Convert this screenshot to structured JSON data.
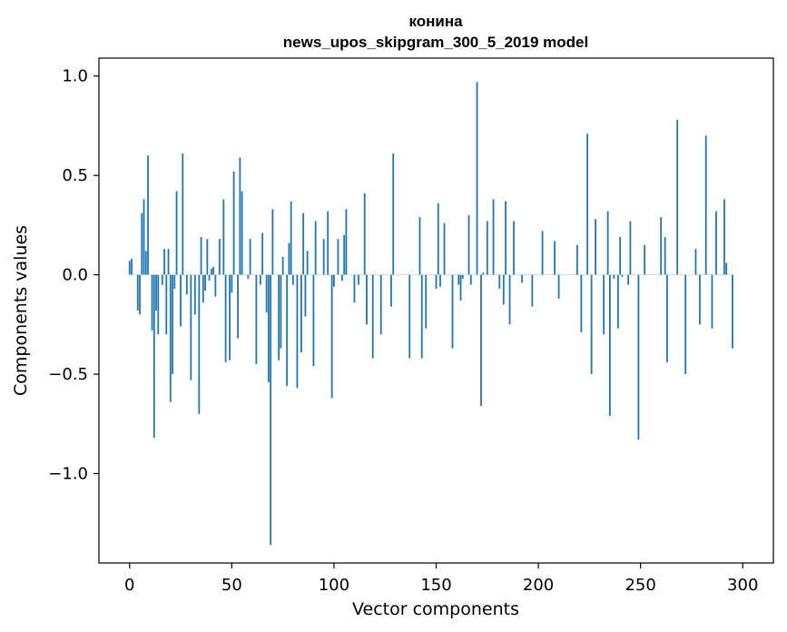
{
  "chart_data": {
    "type": "bar",
    "title": [
      "конина",
      "news_upos_skipgram_300_5_2019 model"
    ],
    "xlabel": "Vector components",
    "ylabel": "Components values",
    "xlim": [
      -15,
      315
    ],
    "ylim": [
      -1.45,
      1.09
    ],
    "xticks": [
      0,
      50,
      100,
      150,
      200,
      250,
      300
    ],
    "xtick_labels": [
      "0",
      "50",
      "100",
      "150",
      "200",
      "250",
      "300"
    ],
    "yticks": [
      -1.0,
      -0.5,
      0.0,
      0.5,
      1.0
    ],
    "ytick_labels": [
      "−1.0",
      "−0.5",
      "0.0",
      "0.5",
      "1.0"
    ],
    "grid": false,
    "bar_color": "#1f77b4",
    "x": "indices 0-299 (one bar per vector component)",
    "values": [
      0.07,
      0.08,
      0.0,
      0.0,
      -0.18,
      -0.2,
      0.31,
      0.38,
      0.12,
      0.6,
      0.0,
      -0.28,
      -0.82,
      -0.18,
      -0.3,
      0.0,
      -0.05,
      0.13,
      -0.3,
      0.13,
      -0.64,
      -0.5,
      -0.07,
      0.42,
      0.0,
      -0.26,
      0.61,
      0.0,
      -0.1,
      0.0,
      -0.53,
      0.0,
      -0.2,
      0.0,
      -0.7,
      0.19,
      -0.14,
      -0.08,
      0.18,
      -0.03,
      0.03,
      0.04,
      -0.11,
      0.0,
      0.18,
      0.0,
      0.38,
      -0.44,
      0.0,
      -0.43,
      -0.09,
      0.52,
      0.0,
      -0.32,
      0.59,
      0.42,
      0.0,
      0.0,
      -0.02,
      0.18,
      0.0,
      0.0,
      -0.45,
      0.0,
      -0.05,
      0.21,
      0.0,
      -0.19,
      -0.54,
      -1.36,
      0.33,
      0.0,
      0.0,
      -0.43,
      -0.37,
      0.09,
      0.0,
      -0.56,
      0.16,
      0.37,
      -0.05,
      0.0,
      -0.57,
      0.0,
      -0.39,
      0.31,
      -0.21,
      0.12,
      0.0,
      0.0,
      -0.46,
      0.27,
      0.0,
      0.0,
      0.0,
      0.18,
      0.0,
      0.32,
      0.0,
      -0.62,
      -0.06,
      0.0,
      0.18,
      0.0,
      -0.03,
      0.2,
      0.33,
      0.0,
      0.0,
      0.0,
      -0.14,
      0.0,
      -0.05,
      0.0,
      0.0,
      0.41,
      -0.25,
      0.0,
      0.0,
      -0.42,
      0.0,
      0.0,
      0.0,
      -0.3,
      0.0,
      0.0,
      0.0,
      0.0,
      -0.16,
      0.61,
      0.0,
      0.0,
      0.0,
      0.0,
      0.0,
      0.0,
      0.0,
      -0.42,
      0.0,
      0.0,
      0.0,
      0.0,
      0.29,
      -0.42,
      0.0,
      -0.27,
      0.0,
      0.0,
      0.0,
      0.0,
      -0.07,
      0.36,
      -0.06,
      0.0,
      0.26,
      0.0,
      0.0,
      0.0,
      -0.37,
      0.0,
      0.0,
      -0.05,
      -0.13,
      -0.02,
      0.0,
      0.0,
      0.3,
      -0.05,
      0.0,
      0.0,
      0.97,
      0.0,
      -0.66,
      0.01,
      0.0,
      0.27,
      0.0,
      0.0,
      0.38,
      0.0,
      0.0,
      -0.07,
      0.0,
      -0.15,
      0.37,
      0.0,
      -0.25,
      0.0,
      0.27,
      0.0,
      0.0,
      0.0,
      -0.04,
      0.0,
      0.0,
      0.0,
      0.0,
      -0.16,
      0.0,
      0.0,
      0.0,
      0.0,
      0.22,
      0.0,
      0.0,
      0.0,
      0.0,
      0.0,
      0.17,
      0.0,
      -0.12,
      0.0,
      0.0,
      0.0,
      0.0,
      0.0,
      0.0,
      0.0,
      0.0,
      0.15,
      0.0,
      -0.29,
      0.0,
      0.0,
      0.71,
      0.0,
      -0.5,
      0.0,
      0.28,
      0.0,
      0.0,
      0.0,
      -0.3,
      0.0,
      0.32,
      -0.71,
      0.0,
      -0.02,
      0.0,
      -0.27,
      0.19,
      -0.01,
      0.0,
      0.0,
      -0.05,
      0.27,
      0.0,
      0.0,
      0.0,
      -0.83,
      0.0,
      0.0,
      0.15,
      0.0,
      0.0,
      0.0,
      0.0,
      0.0,
      0.0,
      0.0,
      0.29,
      0.0,
      0.19,
      -0.44,
      0.0,
      0.0,
      0.0,
      0.0,
      0.78,
      0.0,
      0.0,
      0.0,
      -0.5,
      0.0,
      0.0,
      0.0,
      0.0,
      0.13,
      0.0,
      -0.25,
      0.0,
      0.0,
      0.7,
      0.0,
      0.0,
      -0.27,
      0.0,
      0.32,
      0.0,
      0.0,
      0.0,
      0.38,
      0.06,
      0.0,
      0.0,
      -0.37
    ]
  }
}
